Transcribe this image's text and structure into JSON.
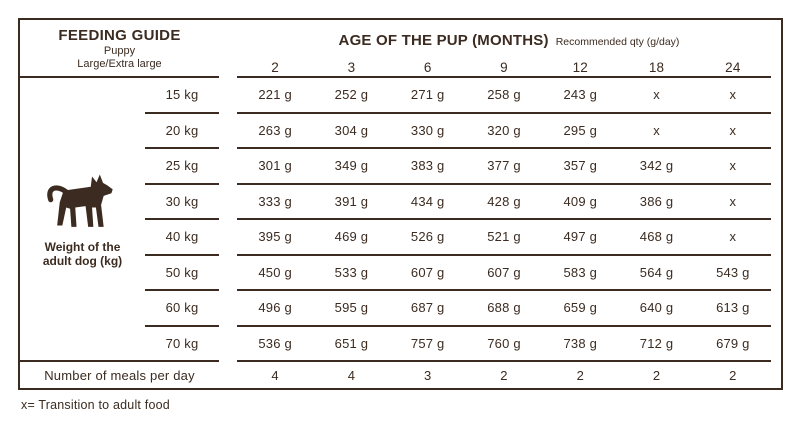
{
  "colors": {
    "ink": "#3b2b20",
    "background": "#ffffff"
  },
  "table": {
    "title": "FEEDING GUIDE",
    "subtitle_line1": "Puppy",
    "subtitle_line2": "Large/Extra large",
    "age_header": "AGE OF THE PUP (MONTHS)",
    "age_subheader": "Recommended qty (g/day)",
    "age_columns": [
      "2",
      "3",
      "6",
      "9",
      "12",
      "18",
      "24"
    ],
    "weight_label_line1": "Weight of the",
    "weight_label_line2": "adult dog (kg)",
    "dog_icon": "dog-icon",
    "rows": [
      {
        "weight": "15 kg",
        "values": [
          "221 g",
          "252 g",
          "271 g",
          "258 g",
          "243 g",
          "x",
          "x"
        ]
      },
      {
        "weight": "20 kg",
        "values": [
          "263 g",
          "304 g",
          "330 g",
          "320 g",
          "295 g",
          "x",
          "x"
        ]
      },
      {
        "weight": "25 kg",
        "values": [
          "301 g",
          "349 g",
          "383 g",
          "377 g",
          "357 g",
          "342 g",
          "x"
        ]
      },
      {
        "weight": "30 kg",
        "values": [
          "333 g",
          "391 g",
          "434 g",
          "428 g",
          "409 g",
          "386 g",
          "x"
        ]
      },
      {
        "weight": "40 kg",
        "values": [
          "395 g",
          "469 g",
          "526 g",
          "521 g",
          "497 g",
          "468 g",
          "x"
        ]
      },
      {
        "weight": "50 kg",
        "values": [
          "450 g",
          "533 g",
          "607 g",
          "607 g",
          "583 g",
          "564 g",
          "543 g"
        ]
      },
      {
        "weight": "60 kg",
        "values": [
          "496 g",
          "595 g",
          "687 g",
          "688 g",
          "659 g",
          "640 g",
          "613 g"
        ]
      },
      {
        "weight": "70 kg",
        "values": [
          "536 g",
          "651 g",
          "757 g",
          "760 g",
          "738 g",
          "712 g",
          "679 g"
        ]
      }
    ],
    "meals_label": "Number of meals per day",
    "meals": [
      "4",
      "4",
      "3",
      "2",
      "2",
      "2",
      "2"
    ],
    "footnote": "x= Transition to adult food"
  }
}
